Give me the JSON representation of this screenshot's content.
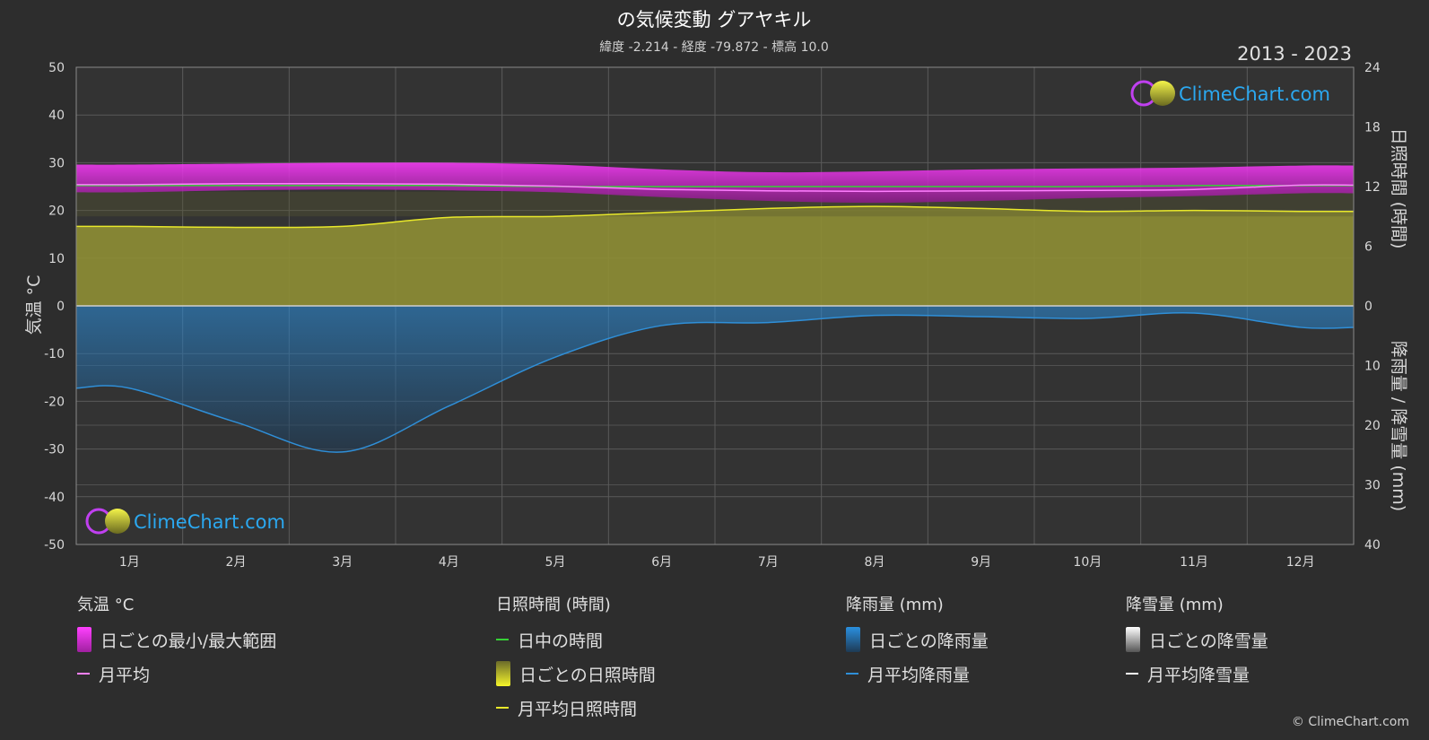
{
  "title": "の気候変動 グアヤキル",
  "subtitle": "緯度 -2.214 - 経度 -79.872 - 標高 10.0",
  "year_range": "2013 - 2023",
  "watermark": "ClimeChart.com",
  "copyright": "© ClimeChart.com",
  "colors": {
    "background": "#2d2d2d",
    "temp_range": "#d21ed2",
    "temp_mean": "#ff80ff",
    "daylight": "#36d136",
    "sunshine_fill": "#a8a83a",
    "sunshine_mean": "#e8e82a",
    "rain_fill": "#1f5f8f",
    "rain_mean": "#2f8fd8",
    "snow_mean": "#ffffff"
  },
  "legend": {
    "temperature": {
      "title": "気温 °C",
      "range": "日ごとの最小/最大範囲",
      "mean": "月平均"
    },
    "sunshine": {
      "title": "日照時間 (時間)",
      "daylight": "日中の時間",
      "daily": "日ごとの日照時間",
      "mean": "月平均日照時間"
    },
    "rain": {
      "title": "降雨量 (mm)",
      "daily": "日ごとの降雨量",
      "mean": "月平均降雨量"
    },
    "snow": {
      "title": "降雪量 (mm)",
      "daily": "日ごとの降雪量",
      "mean": "月平均降雪量"
    }
  },
  "chart_data": {
    "type": "line",
    "categories": [
      "1月",
      "2月",
      "3月",
      "4月",
      "5月",
      "6月",
      "7月",
      "8月",
      "9月",
      "10月",
      "11月",
      "12月"
    ],
    "axes": {
      "left": {
        "label": "気温 °C",
        "min": -50,
        "max": 50,
        "ticks": [
          50,
          40,
          30,
          20,
          10,
          0,
          -10,
          -20,
          -30,
          -40,
          -50
        ]
      },
      "right_top": {
        "label": "日照時間 (時間)",
        "min": 0,
        "max": 24,
        "ticks": [
          24,
          18,
          12,
          6,
          0
        ]
      },
      "right_bottom": {
        "label": "降雨量 / 降雪量 (mm)",
        "min": 0,
        "max": 40,
        "ticks": [
          0,
          10,
          20,
          30,
          40
        ]
      }
    },
    "grid": true,
    "series": [
      {
        "name": "日ごとの最小/最大範囲",
        "type": "band",
        "axis": "left",
        "min": [
          23.8,
          24.2,
          24.4,
          24.2,
          23.8,
          22.8,
          22.0,
          21.6,
          22.0,
          22.6,
          23.0,
          23.6
        ],
        "max": [
          29.6,
          29.8,
          30.0,
          30.0,
          29.6,
          28.6,
          28.0,
          28.2,
          28.6,
          28.8,
          29.0,
          29.4
        ]
      },
      {
        "name": "月平均",
        "type": "line",
        "axis": "left",
        "values": [
          25.4,
          25.6,
          25.6,
          25.5,
          25.1,
          24.4,
          24.1,
          24.0,
          24.1,
          24.2,
          24.4,
          25.3
        ]
      },
      {
        "name": "日中の時間",
        "type": "line",
        "axis": "right_top",
        "values": [
          12.1,
          12.1,
          12.1,
          12.1,
          12.0,
          12.0,
          12.0,
          12.0,
          12.0,
          12.0,
          12.1,
          12.1
        ]
      },
      {
        "name": "月平均日照時間",
        "type": "line",
        "axis": "right_top",
        "values": [
          8.0,
          7.9,
          8.0,
          8.9,
          9.0,
          9.4,
          9.8,
          10.0,
          9.8,
          9.5,
          9.6,
          9.5
        ]
      },
      {
        "name": "月平均降雨量",
        "type": "line",
        "axis": "right_bottom",
        "values": [
          13.8,
          19.5,
          24.5,
          16.8,
          8.6,
          3.3,
          2.8,
          1.6,
          1.8,
          2.1,
          1.2,
          3.6
        ]
      }
    ]
  }
}
